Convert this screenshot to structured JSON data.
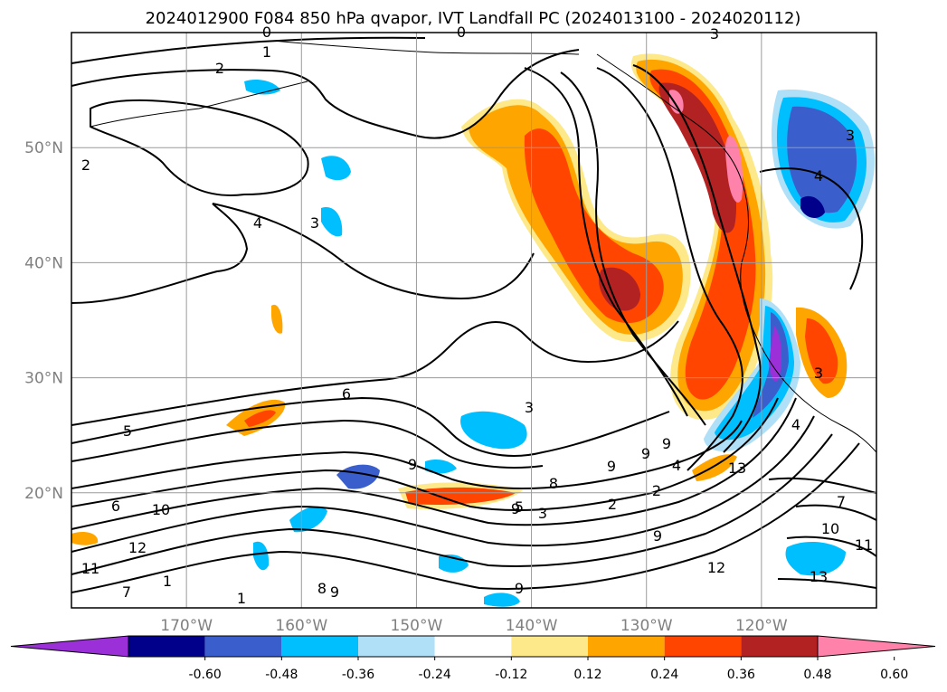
{
  "chart_data": {
    "type": "contour map",
    "title": "2024012900 F084 850 hPa qvapor, IVT Landfall PC (2024013100 - 2024020112)",
    "x_tick_labels": [
      "170°W",
      "160°W",
      "150°W",
      "140°W",
      "130°W",
      "120°W"
    ],
    "y_tick_labels": [
      "20°N",
      "30°N",
      "40°N",
      "50°N"
    ],
    "x_ticks_deg": [
      -170,
      -160,
      -150,
      -140,
      -130,
      -120
    ],
    "y_ticks_deg": [
      20,
      30,
      40,
      50
    ],
    "xlim_deg": [
      -180,
      -110
    ],
    "ylim_deg": [
      10,
      60
    ],
    "grid": true,
    "colorbar": {
      "orientation": "horizontal",
      "extend": "both",
      "tick_labels": [
        "-0.60",
        "-0.48",
        "-0.36",
        "-0.24",
        "-0.12",
        "0.12",
        "0.24",
        "0.36",
        "0.48",
        "0.60"
      ],
      "colors": [
        "#9b30d9",
        "#00008b",
        "#3a5fcd",
        "#00bfff",
        "#afe0f8",
        "#ffffff",
        "#fde98a",
        "#ffa500",
        "#ff4500",
        "#b22222",
        "#ff82ab"
      ]
    },
    "contour_labels": [
      "0",
      "0",
      "1",
      "2",
      "2",
      "3",
      "3",
      "3",
      "3",
      "4",
      "4",
      "5",
      "6",
      "3",
      "9",
      "9",
      "9",
      "9",
      "9",
      "8",
      "4",
      "2",
      "2",
      "5",
      "3",
      "9",
      "7",
      "10",
      "10",
      "11",
      "11",
      "12",
      "12",
      "13",
      "8",
      "9",
      "9",
      "6",
      "7",
      "1",
      "1",
      "13",
      "3",
      "4"
    ]
  }
}
